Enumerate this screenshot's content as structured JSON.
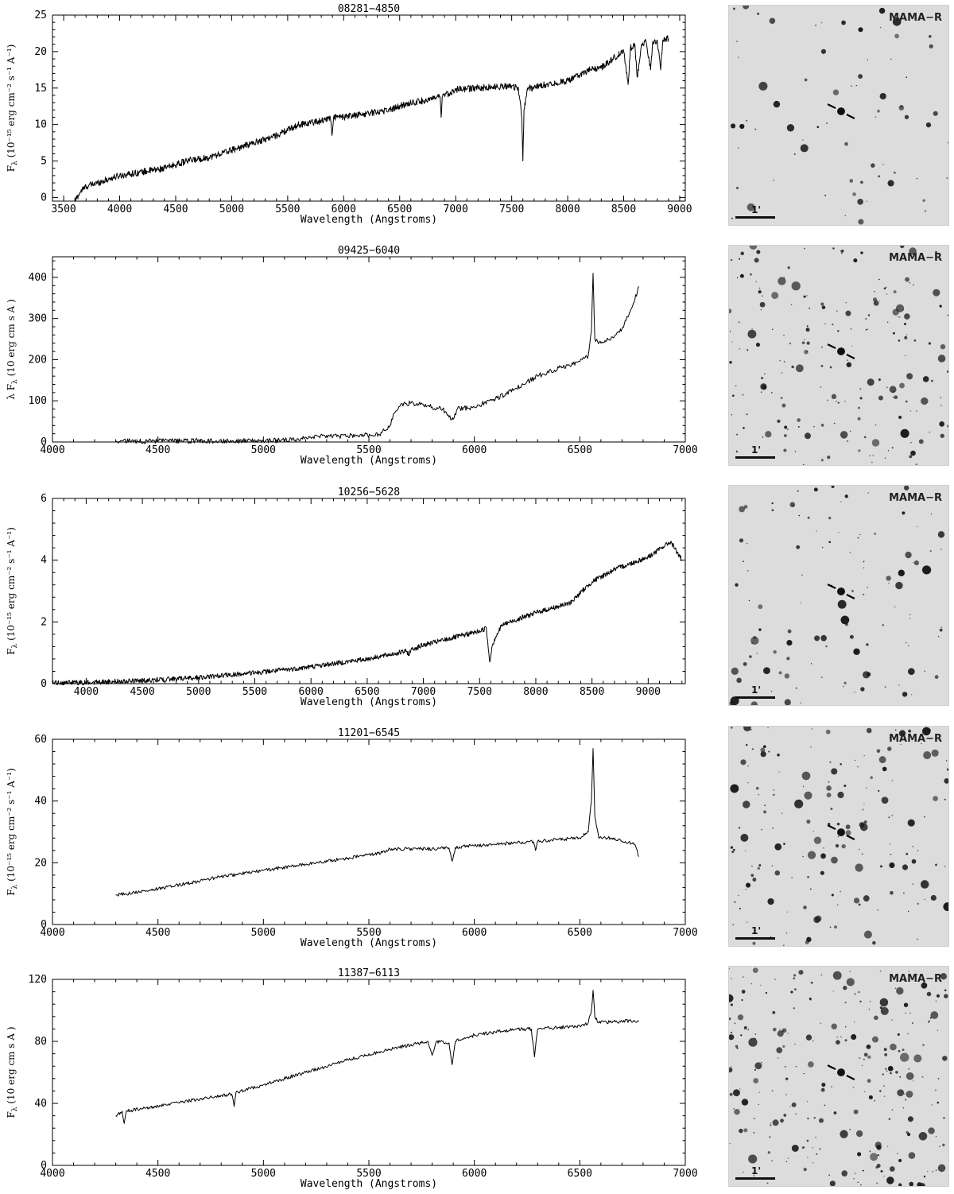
{
  "chart_data": [
    {
      "type": "line",
      "title": "08281−4850",
      "xlabel": "Wavelength (Angstroms)",
      "ylabel_main": "F",
      "ylabel_sub": "λ",
      "ylabel_rest": " (10⁻¹⁵ erg cm⁻² s⁻¹ A⁻¹)",
      "xlim": [
        3400,
        9050
      ],
      "ylim": [
        -0.5,
        25
      ],
      "xticks": [
        3500,
        4000,
        4500,
        5000,
        5500,
        6000,
        6500,
        7000,
        7500,
        8000,
        8500,
        9000
      ],
      "yticks": [
        0,
        5,
        10,
        15,
        20,
        25
      ],
      "x": [
        3600,
        3650,
        3700,
        3800,
        3900,
        4000,
        4200,
        4400,
        4600,
        4800,
        5000,
        5200,
        5400,
        5600,
        5800,
        5880,
        5895,
        5910,
        6000,
        6200,
        6400,
        6600,
        6800,
        6860,
        6870,
        6880,
        7000,
        7200,
        7400,
        7500,
        7560,
        7590,
        7600,
        7610,
        7640,
        7700,
        7800,
        8000,
        8200,
        8300,
        8400,
        8450,
        8500,
        8540,
        8560,
        8600,
        8620,
        8660,
        8700,
        8740,
        8760,
        8800,
        8830,
        8850,
        8900
      ],
      "y": [
        -0.5,
        0.8,
        1.5,
        2.0,
        2.5,
        3.0,
        3.5,
        4.0,
        5.0,
        5.5,
        6.5,
        7.5,
        8.5,
        10.0,
        10.5,
        11.0,
        8.5,
        11.0,
        11.0,
        11.5,
        12.0,
        13.0,
        13.5,
        13.8,
        11.0,
        13.8,
        14.8,
        15.0,
        15.2,
        15.3,
        15.0,
        11.0,
        5.0,
        12.0,
        15.0,
        15.0,
        15.5,
        16.0,
        17.5,
        17.8,
        19.0,
        19.5,
        20.0,
        15.5,
        20.5,
        21.0,
        16.5,
        21.0,
        21.3,
        17.5,
        21.4,
        21.5,
        17.5,
        21.6,
        21.8
      ],
      "noise": 0.45
    },
    {
      "type": "line",
      "title": "09425−6040",
      "xlabel": "Wavelength (Angstroms)",
      "ylabel_main": "λ F",
      "ylabel_sub": "λ",
      "ylabel_rest": " (10    erg cm    s    A   )",
      "xlim": [
        4000,
        7000
      ],
      "ylim": [
        0,
        450
      ],
      "xticks": [
        4000,
        4500,
        5000,
        5500,
        6000,
        6500,
        7000
      ],
      "yticks": [
        0,
        100,
        200,
        300,
        400
      ],
      "x": [
        4300,
        5000,
        5150,
        5200,
        5400,
        5550,
        5600,
        5620,
        5650,
        5700,
        5800,
        5850,
        5880,
        5900,
        5920,
        6000,
        6100,
        6200,
        6300,
        6400,
        6500,
        6540,
        6555,
        6563,
        6571,
        6600,
        6650,
        6700,
        6750,
        6780
      ],
      "y": [
        2,
        3,
        5,
        12,
        15,
        18,
        40,
        70,
        90,
        95,
        85,
        80,
        60,
        55,
        80,
        85,
        105,
        130,
        160,
        180,
        195,
        210,
        270,
        410,
        250,
        240,
        255,
        275,
        330,
        378
      ],
      "noise": 6
    },
    {
      "type": "line",
      "title": "10256−5628",
      "xlabel": "Wavelength (Angstroms)",
      "ylabel_main": "F",
      "ylabel_sub": "λ",
      "ylabel_rest": " (10⁻¹⁵ erg cm⁻² s⁻¹ A⁻¹)",
      "xlim": [
        3700,
        9330
      ],
      "ylim": [
        0,
        6
      ],
      "xticks": [
        4000,
        4500,
        5000,
        5500,
        6000,
        6500,
        7000,
        7500,
        8000,
        8500,
        9000
      ],
      "yticks": [
        0,
        2,
        4,
        6
      ],
      "x": [
        3700,
        4000,
        4500,
        5000,
        5500,
        5900,
        6000,
        6500,
        6850,
        6870,
        6890,
        7000,
        7500,
        7560,
        7590,
        7610,
        7640,
        7700,
        8000,
        8300,
        8500,
        8700,
        9000,
        9200,
        9300
      ],
      "y": [
        0.02,
        0.04,
        0.1,
        0.2,
        0.35,
        0.5,
        0.55,
        0.8,
        1.05,
        0.95,
        1.1,
        1.25,
        1.7,
        1.8,
        0.7,
        1.2,
        1.5,
        1.9,
        2.3,
        2.6,
        3.3,
        3.7,
        4.1,
        4.6,
        4.0
      ],
      "noise": 0.08
    },
    {
      "type": "line",
      "title": "11201−6545",
      "xlabel": "Wavelength (Angstroms)",
      "ylabel_main": "F",
      "ylabel_sub": "λ",
      "ylabel_rest": " (10⁻¹⁵ erg cm⁻² s⁻¹ A⁻¹)",
      "xlim": [
        4000,
        7000
      ],
      "ylim": [
        0,
        60
      ],
      "xticks": [
        4000,
        4500,
        5000,
        5500,
        6000,
        6500,
        7000
      ],
      "yticks": [
        0,
        20,
        40,
        60
      ],
      "x": [
        4300,
        4500,
        4800,
        5000,
        5200,
        5400,
        5580,
        5600,
        5800,
        5880,
        5895,
        5910,
        6000,
        6200,
        6280,
        6290,
        6300,
        6500,
        6540,
        6555,
        6563,
        6571,
        6590,
        6650,
        6700,
        6760,
        6780
      ],
      "y": [
        9.5,
        11.5,
        15.5,
        17.5,
        19.5,
        21.5,
        23.5,
        24.5,
        24.5,
        24.8,
        20.5,
        25.0,
        25.5,
        26.5,
        26.8,
        24.0,
        27.0,
        28.0,
        30.0,
        40.0,
        57.0,
        35.0,
        28.0,
        28.0,
        27.0,
        26.0,
        22.0
      ],
      "noise": 0.55
    },
    {
      "type": "line",
      "title": "11387−6113",
      "xlabel": "Wavelength (Angstroms)",
      "ylabel_main": "F",
      "ylabel_sub": "λ",
      "ylabel_rest": " (10    erg cm    s    A   )",
      "xlim": [
        4000,
        7000
      ],
      "ylim": [
        0,
        120
      ],
      "xticks": [
        4000,
        4500,
        5000,
        5500,
        6000,
        6500,
        7000
      ],
      "yticks": [
        0,
        40,
        80,
        120
      ],
      "x": [
        4300,
        4330,
        4340,
        4350,
        4500,
        4700,
        4850,
        4861,
        4870,
        5000,
        5200,
        5400,
        5600,
        5780,
        5800,
        5820,
        5880,
        5895,
        5910,
        6000,
        6100,
        6200,
        6270,
        6285,
        6300,
        6400,
        6500,
        6540,
        6555,
        6563,
        6571,
        6590,
        6700,
        6780
      ],
      "y": [
        32,
        35,
        27,
        35,
        38,
        43,
        46,
        38,
        47,
        52,
        60,
        68,
        75,
        80,
        71,
        80,
        79,
        65,
        80,
        84,
        86,
        88,
        88,
        70,
        88,
        89,
        90,
        92,
        100,
        113,
        96,
        92,
        93,
        93
      ],
      "noise": 1.1
    }
  ],
  "images": [
    {
      "label": "MAMA−R",
      "scale": "1'"
    },
    {
      "label": "MAMA−R",
      "scale": "1'"
    },
    {
      "label": "MAMA−R",
      "scale": "1'"
    },
    {
      "label": "MAMA−R",
      "scale": "1'"
    },
    {
      "label": "MAMA−R",
      "scale": "1'"
    }
  ],
  "colors": {
    "line": "#000000",
    "axes": "#000000",
    "sky": "#dcdcdc",
    "star": "#1a1a1a"
  }
}
